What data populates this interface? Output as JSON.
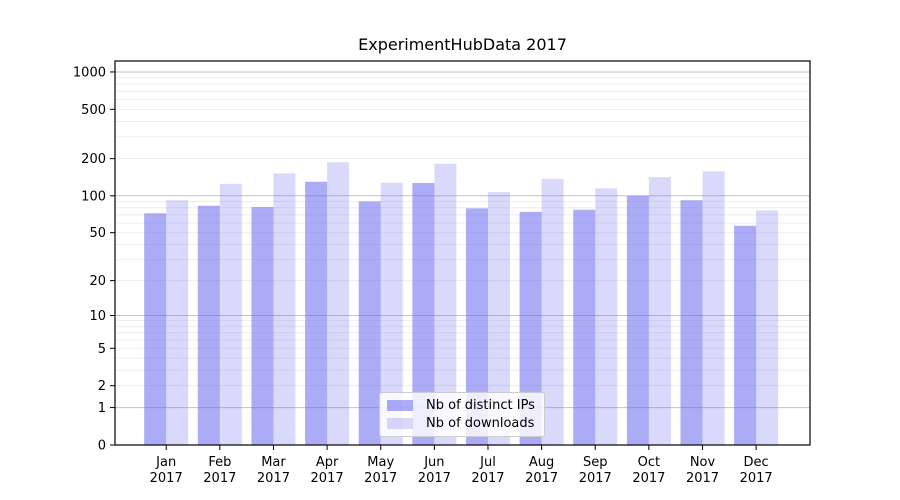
{
  "chart_data": {
    "type": "bar",
    "title": "ExperimentHubData 2017",
    "scale": "log1p",
    "grid": true,
    "legend_position": "lower center",
    "categories": [
      "Jan",
      "Feb",
      "Mar",
      "Apr",
      "May",
      "Jun",
      "Jul",
      "Aug",
      "Sep",
      "Oct",
      "Nov",
      "Dec"
    ],
    "category_year": "2017",
    "series": [
      {
        "name": "Nb of distinct IPs",
        "base_color": "#6666ee",
        "alpha": 0.55,
        "values": [
          72,
          83,
          81,
          130,
          90,
          127,
          79,
          74,
          77,
          100,
          92,
          57
        ]
      },
      {
        "name": "Nb of downloads",
        "base_color": "#6666ee",
        "alpha": 0.25,
        "values": [
          92,
          125,
          152,
          187,
          128,
          182,
          107,
          137,
          115,
          142,
          158,
          76
        ]
      }
    ],
    "yticks": [
      0,
      1,
      2,
      5,
      10,
      20,
      50,
      100,
      200,
      500,
      1000
    ],
    "ylim": [
      0,
      1230
    ]
  },
  "axis_style": {
    "axis_color": "#000000",
    "label_color": "#000000",
    "major_grid_color": "#c3c3c3",
    "minor_grid_color": "#ededed"
  }
}
